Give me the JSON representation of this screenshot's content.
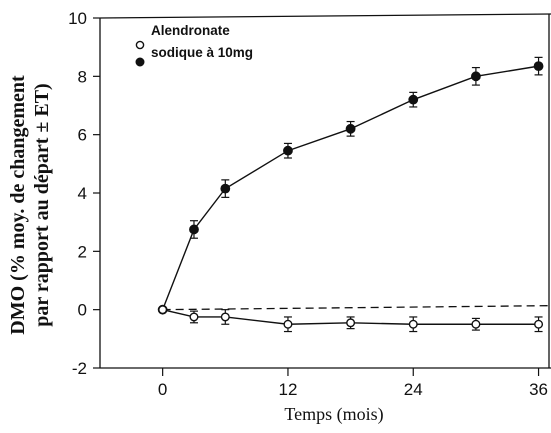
{
  "chart_data": {
    "type": "line",
    "xlabel": "Temps (mois)",
    "ylabel_lines": [
      "DMO (% moy. de changement",
      "par rapport au départ ± ET)"
    ],
    "x_ticks": [
      "0",
      "12",
      "24",
      "36"
    ],
    "y_ticks": [
      "-2",
      "0",
      "2",
      "4",
      "6",
      "8",
      "10"
    ],
    "xlim": [
      -6,
      37
    ],
    "ylim": [
      -2,
      10
    ],
    "grid": false,
    "legend_position": "top-left",
    "legend_label_lines": [
      "Alendronate",
      "sodique à 10mg"
    ],
    "series": [
      {
        "marker": "filled-circle",
        "x": [
          0,
          3,
          6,
          12,
          18,
          24,
          30,
          36
        ],
        "y": [
          0,
          2.75,
          4.15,
          5.45,
          6.2,
          7.2,
          8.0,
          8.35
        ],
        "err": [
          0,
          0.3,
          0.3,
          0.25,
          0.25,
          0.25,
          0.3,
          0.3
        ]
      },
      {
        "marker": "open-circle",
        "x": [
          0,
          3,
          6,
          12,
          18,
          24,
          30,
          36
        ],
        "y": [
          0,
          -0.25,
          -0.25,
          -0.5,
          -0.45,
          -0.5,
          -0.5,
          -0.5
        ],
        "err": [
          0,
          0.2,
          0.25,
          0.25,
          0.2,
          0.25,
          0.2,
          0.25
        ]
      }
    ],
    "reference_line": {
      "y": 0,
      "style": "dashed"
    },
    "colors": {
      "ink": "#111111",
      "background": "#ffffff"
    }
  }
}
